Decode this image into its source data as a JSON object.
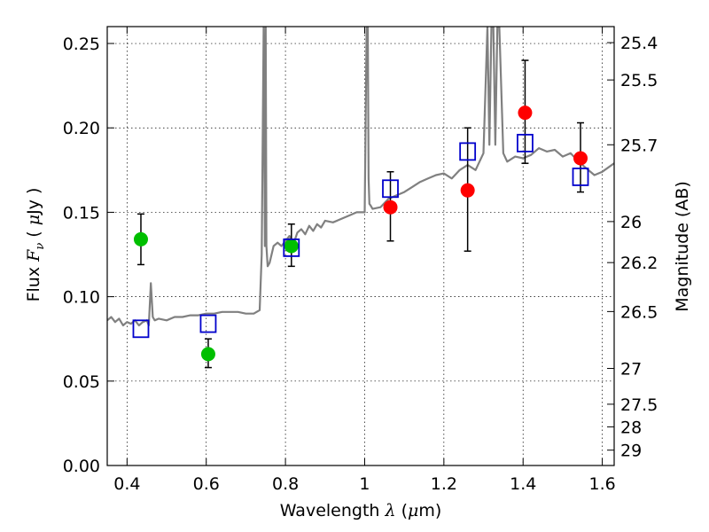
{
  "chart_data": {
    "type": "scatter",
    "xlabel": "Wavelength  λ (μm)",
    "xlabel_parts": [
      "Wavelength  ",
      "λ",
      " (",
      "μ",
      "m)"
    ],
    "ylabel_parts": [
      "Flux  ",
      "F",
      "ν",
      "  ( ",
      "μ",
      "Jy )"
    ],
    "ylabel_right": "Magnitude (AB)",
    "xlim": [
      0.35,
      1.63
    ],
    "ylim": [
      0.0,
      0.26
    ],
    "grid": true,
    "x_ticks": [
      0.4,
      0.6,
      0.8,
      1.0,
      1.2,
      1.4,
      1.6
    ],
    "x_tick_labels": [
      "0.4",
      "0.6",
      "0.8",
      "1",
      "1.2",
      "1.4",
      "1.6"
    ],
    "y_ticks": [
      0.0,
      0.05,
      0.1,
      0.15,
      0.2,
      0.25
    ],
    "y_tick_labels": [
      "0.00",
      "0.05",
      "0.10",
      "0.15",
      "0.20",
      "0.25"
    ],
    "magnitude_ticks": [
      {
        "label": "25.4",
        "flux": 0.2505
      },
      {
        "label": "25.5",
        "flux": 0.2284
      },
      {
        "label": "25.7",
        "flux": 0.19
      },
      {
        "label": "26",
        "flux": 0.1445
      },
      {
        "label": "26.2",
        "flux": 0.1202
      },
      {
        "label": "26.5",
        "flux": 0.0912
      },
      {
        "label": "27",
        "flux": 0.0575
      },
      {
        "label": "27.5",
        "flux": 0.0363
      },
      {
        "label": "28",
        "flux": 0.0229
      },
      {
        "label": "29",
        "flux": 0.0091
      }
    ],
    "series": [
      {
        "name": "model-spectrum",
        "kind": "line",
        "color": "#808080",
        "x": [
          0.35,
          0.36,
          0.37,
          0.38,
          0.39,
          0.4,
          0.41,
          0.42,
          0.43,
          0.44,
          0.45,
          0.455,
          0.46,
          0.465,
          0.47,
          0.48,
          0.5,
          0.52,
          0.54,
          0.56,
          0.58,
          0.6,
          0.62,
          0.64,
          0.66,
          0.68,
          0.7,
          0.72,
          0.735,
          0.74,
          0.745,
          0.748,
          0.75,
          0.752,
          0.755,
          0.76,
          0.77,
          0.78,
          0.79,
          0.8,
          0.81,
          0.82,
          0.83,
          0.84,
          0.85,
          0.86,
          0.87,
          0.88,
          0.89,
          0.9,
          0.92,
          0.94,
          0.96,
          0.98,
          1.0,
          1.005,
          1.008,
          1.01,
          1.012,
          1.015,
          1.02,
          1.04,
          1.06,
          1.08,
          1.1,
          1.12,
          1.14,
          1.16,
          1.18,
          1.2,
          1.22,
          1.24,
          1.26,
          1.28,
          1.3,
          1.31,
          1.315,
          1.32,
          1.325,
          1.33,
          1.335,
          1.34,
          1.35,
          1.36,
          1.38,
          1.4,
          1.42,
          1.44,
          1.46,
          1.48,
          1.5,
          1.52,
          1.54,
          1.56,
          1.58,
          1.6,
          1.63
        ],
        "y": [
          0.086,
          0.088,
          0.085,
          0.087,
          0.083,
          0.085,
          0.084,
          0.086,
          0.083,
          0.085,
          0.086,
          0.083,
          0.108,
          0.088,
          0.086,
          0.087,
          0.086,
          0.088,
          0.088,
          0.089,
          0.089,
          0.09,
          0.09,
          0.091,
          0.091,
          0.091,
          0.09,
          0.09,
          0.092,
          0.125,
          0.26,
          0.13,
          0.26,
          0.13,
          0.118,
          0.12,
          0.13,
          0.132,
          0.13,
          0.133,
          0.136,
          0.131,
          0.138,
          0.14,
          0.137,
          0.142,
          0.139,
          0.143,
          0.141,
          0.145,
          0.144,
          0.146,
          0.148,
          0.15,
          0.15,
          0.26,
          0.26,
          0.17,
          0.155,
          0.154,
          0.152,
          0.153,
          0.158,
          0.16,
          0.162,
          0.165,
          0.168,
          0.17,
          0.172,
          0.173,
          0.17,
          0.175,
          0.178,
          0.175,
          0.185,
          0.26,
          0.19,
          0.26,
          0.26,
          0.19,
          0.26,
          0.26,
          0.185,
          0.18,
          0.183,
          0.182,
          0.184,
          0.188,
          0.186,
          0.187,
          0.183,
          0.185,
          0.18,
          0.176,
          0.172,
          0.174,
          0.179
        ]
      },
      {
        "name": "green-photometry",
        "kind": "points",
        "marker": "circle",
        "color": "#00bf00",
        "x": [
          0.435,
          0.605,
          0.815
        ],
        "y": [
          0.134,
          0.066,
          0.13
        ],
        "yerr_low": [
          0.015,
          0.008,
          0.012
        ],
        "yerr_high": [
          0.015,
          0.009,
          0.013
        ]
      },
      {
        "name": "red-photometry",
        "kind": "points",
        "marker": "circle",
        "color": "#ff0000",
        "x": [
          1.065,
          1.26,
          1.405,
          1.545
        ],
        "y": [
          0.153,
          0.163,
          0.209,
          0.182
        ],
        "yerr_low": [
          0.02,
          0.036,
          0.03,
          0.02
        ],
        "yerr_high": [
          0.021,
          0.037,
          0.031,
          0.021
        ]
      },
      {
        "name": "model-bandpass-fluxes",
        "kind": "points",
        "marker": "square-open",
        "color": "#0000cc",
        "x": [
          0.435,
          0.605,
          0.815,
          1.065,
          1.26,
          1.405,
          1.545
        ],
        "y": [
          0.081,
          0.084,
          0.129,
          0.164,
          0.186,
          0.191,
          0.171
        ]
      }
    ]
  }
}
